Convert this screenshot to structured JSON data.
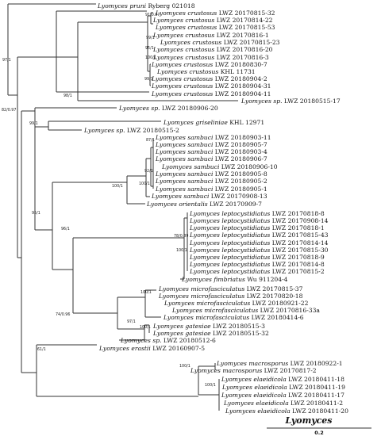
{
  "figure": {
    "clade_label": "Lyomyces",
    "scale_label": "0.2"
  },
  "taxa": [
    {
      "id": "pruni",
      "genus": "Lyomyces",
      "species": "pruni",
      "voucher": "Ryberg 021018"
    },
    {
      "id": "cr1",
      "genus": "Lyomyces",
      "species": "crustosus",
      "voucher": "LWZ 20170815-32"
    },
    {
      "id": "cr2",
      "genus": "Lyomyces",
      "species": "crustosus",
      "voucher": "LWZ 20170814-22"
    },
    {
      "id": "cr3",
      "genus": "Lyomyces",
      "species": "crustosus",
      "voucher": "LWZ 20170815-53"
    },
    {
      "id": "cr4",
      "genus": "Lyomyces",
      "species": "crustosus",
      "voucher": "LWZ 20170816-1"
    },
    {
      "id": "cr5",
      "genus": "Lyomyces",
      "species": "crustosus",
      "voucher": "LWZ 20170815-23"
    },
    {
      "id": "cr6",
      "genus": "Lyomyces",
      "species": "crustosus",
      "voucher": "LWZ 20170816-20"
    },
    {
      "id": "cr7",
      "genus": "Lyomyces",
      "species": "crustosus",
      "voucher": "LWZ 20170816-3"
    },
    {
      "id": "cr8",
      "genus": "Lyomyces",
      "species": "crustosus",
      "voucher": "LWZ 20180830-7"
    },
    {
      "id": "cr9",
      "genus": "Lyomyces",
      "species": "crustosus",
      "voucher": "KHL 11731"
    },
    {
      "id": "cr10",
      "genus": "Lyomyces",
      "species": "crustosus",
      "voucher": "LWZ 20180904-2"
    },
    {
      "id": "cr11",
      "genus": "Lyomyces",
      "species": "crustosus",
      "voucher": "LWZ 20180904-31"
    },
    {
      "id": "cr12",
      "genus": "Lyomyces",
      "species": "crustosus",
      "voucher": "LWZ 20180904-11"
    },
    {
      "id": "sp1",
      "genus": "Lyomyces",
      "species": "sp.",
      "voucher": "LWZ 20180515-17"
    },
    {
      "id": "sp2",
      "genus": "Lyomyces",
      "species": "sp.",
      "voucher": "LWZ 20180906-20"
    },
    {
      "id": "gris",
      "genus": "Lyomyces",
      "species": "griseliniae",
      "voucher": "KHL 12971"
    },
    {
      "id": "sp3",
      "genus": "Lyomyces",
      "species": "sp.",
      "voucher": "LWZ 20180515-2"
    },
    {
      "id": "sa1",
      "genus": "Lyomyces",
      "species": "sambuci",
      "voucher": "LWZ 20180903-11"
    },
    {
      "id": "sa2",
      "genus": "Lyomyces",
      "species": "sambuci",
      "voucher": "LWZ 20180905-7"
    },
    {
      "id": "sa3",
      "genus": "Lyomyces",
      "species": "sambuci",
      "voucher": "LWZ 20180903-4"
    },
    {
      "id": "sa4",
      "genus": "Lyomyces",
      "species": "sambuci",
      "voucher": "LWZ 20180906-7"
    },
    {
      "id": "sa5",
      "genus": "Lyomyces",
      "species": "sambuci",
      "voucher": "LWZ 20180906-10"
    },
    {
      "id": "sa6",
      "genus": "Lyomyces",
      "species": "sambuci",
      "voucher": "LWZ 20180905-8"
    },
    {
      "id": "sa7",
      "genus": "Lyomyces",
      "species": "sambuci",
      "voucher": "LWZ 20180905-2"
    },
    {
      "id": "sa8",
      "genus": "Lyomyces",
      "species": "sambuci",
      "voucher": "LWZ 20180905-1"
    },
    {
      "id": "sa9",
      "genus": "Lyomyces",
      "species": "sambuci",
      "voucher": "LWZ 20170908-13"
    },
    {
      "id": "ori",
      "genus": "Lyomyces",
      "species": "orientalis",
      "voucher": "LWZ 20170909-7"
    },
    {
      "id": "le1",
      "genus": "Lyomyces",
      "species": "leptocystidiatus",
      "voucher": "LWZ 20170818-8"
    },
    {
      "id": "le2",
      "genus": "Lyomyces",
      "species": "leptocystidiatus",
      "voucher": "LWZ 20170908-14"
    },
    {
      "id": "le3",
      "genus": "Lyomyces",
      "species": "leptocystidiatus",
      "voucher": "LWZ 20170818-1"
    },
    {
      "id": "le4",
      "genus": "Lyomyces",
      "species": "leptocystidiatus",
      "voucher": "LWZ 20170815-43"
    },
    {
      "id": "le5",
      "genus": "Lyomyces",
      "species": "leptocystidiatus",
      "voucher": "LWZ 20170814-14"
    },
    {
      "id": "le6",
      "genus": "Lyomyces",
      "species": "leptocystidiatus",
      "voucher": "LWZ 20170815-30"
    },
    {
      "id": "le7",
      "genus": "Lyomyces",
      "species": "leptocystidiatus",
      "voucher": "LWZ 20170818-9"
    },
    {
      "id": "le8",
      "genus": "Lyomyces",
      "species": "leptocystidiatus",
      "voucher": "LWZ 20170814-8"
    },
    {
      "id": "le9",
      "genus": "Lyomyces",
      "species": "leptocystidiatus",
      "voucher": "LWZ 20170815-2"
    },
    {
      "id": "fim",
      "genus": "Lyomyces",
      "species": "fimbriatus",
      "voucher": "Wu 911204-4"
    },
    {
      "id": "mi1",
      "genus": "Lyomyces",
      "species": "microfasciculatus",
      "voucher": "LWZ 20170815-37"
    },
    {
      "id": "mi2",
      "genus": "Lyomyces",
      "species": "microfasciculatus",
      "voucher": "LWZ 20170820-18"
    },
    {
      "id": "mi3",
      "genus": "Lyomyces",
      "species": "microfasciculatus",
      "voucher": "LWZ 20180921-22"
    },
    {
      "id": "mi4",
      "genus": "Lyomyces",
      "species": "microfasciculatus",
      "voucher": "LWZ 20170816-33a"
    },
    {
      "id": "mi5",
      "genus": "Lyomyces",
      "species": "microfasciculatus",
      "voucher": "LWZ 20180414-6"
    },
    {
      "id": "ga1",
      "genus": "Lyomyces",
      "species": "gatesiae",
      "voucher": "LWZ 20180515-3"
    },
    {
      "id": "ga2",
      "genus": "Lyomyces",
      "species": "gatesiae",
      "voucher": "LWZ 20180515-32"
    },
    {
      "id": "sp4",
      "genus": "Lyomyces",
      "species": "sp.",
      "voucher": "LWZ 20180512-6"
    },
    {
      "id": "ere",
      "genus": "Lyomyces",
      "species": "erastii",
      "voucher": "LWZ 20160907-5"
    },
    {
      "id": "ma1",
      "genus": "Lyomyces",
      "species": "macrosporus",
      "voucher": "LWZ 20180922-1"
    },
    {
      "id": "ma2",
      "genus": "Lyomyces",
      "species": "macrosporus",
      "voucher": "LWZ 20170817-2"
    },
    {
      "id": "el1",
      "genus": "Lyomyces",
      "species": "elaeidicola",
      "voucher": "LWZ 20180411-18"
    },
    {
      "id": "el2",
      "genus": "Lyomyces",
      "species": "elaeidicola",
      "voucher": "LWZ 20180411-19"
    },
    {
      "id": "el3",
      "genus": "Lyomyces",
      "species": "elaeidicola",
      "voucher": "LWZ 20180411-17"
    },
    {
      "id": "el4",
      "genus": "Lyomyces",
      "species": "elaeidicola",
      "voucher": "LWZ 20180411-2"
    },
    {
      "id": "el5",
      "genus": "Lyomyces",
      "species": "elaeidicola",
      "voucher": "LWZ 20180411-20"
    }
  ],
  "support_values": [
    {
      "id": "s_cr_a",
      "text": "91/0.87"
    },
    {
      "id": "s_cr_b",
      "text": "99/1"
    },
    {
      "id": "s_cr_c",
      "text": "95/1"
    },
    {
      "id": "s_cr_d",
      "text": "100/1"
    },
    {
      "id": "s_cr_e",
      "text": "99/1"
    },
    {
      "id": "s_cr_f",
      "text": "98/1"
    },
    {
      "id": "s_root_a",
      "text": "97/1"
    },
    {
      "id": "s_root_b",
      "text": "82/0.97"
    },
    {
      "id": "s_mid_a",
      "text": "99/1"
    },
    {
      "id": "s_sa_a",
      "text": "87/1"
    },
    {
      "id": "s_sa_b",
      "text": "92/1"
    },
    {
      "id": "s_sa_c",
      "text": "100/1"
    },
    {
      "id": "s_sa_d",
      "text": "100/1"
    },
    {
      "id": "s_mid_b",
      "text": "95/1"
    },
    {
      "id": "s_le_a",
      "text": "78/0.89"
    },
    {
      "id": "s_le_b",
      "text": "100/1"
    },
    {
      "id": "s_mid_c",
      "text": "96/1"
    },
    {
      "id": "s_mi_a",
      "text": "100/1"
    },
    {
      "id": "s_mid_d",
      "text": "74/0.96"
    },
    {
      "id": "s_ga_a",
      "text": "97/1"
    },
    {
      "id": "s_ga_b",
      "text": "100/1"
    },
    {
      "id": "s_mid_e",
      "text": "61/1"
    },
    {
      "id": "s_ma_a",
      "text": "100/1"
    },
    {
      "id": "s_el_a",
      "text": "100/1"
    }
  ]
}
